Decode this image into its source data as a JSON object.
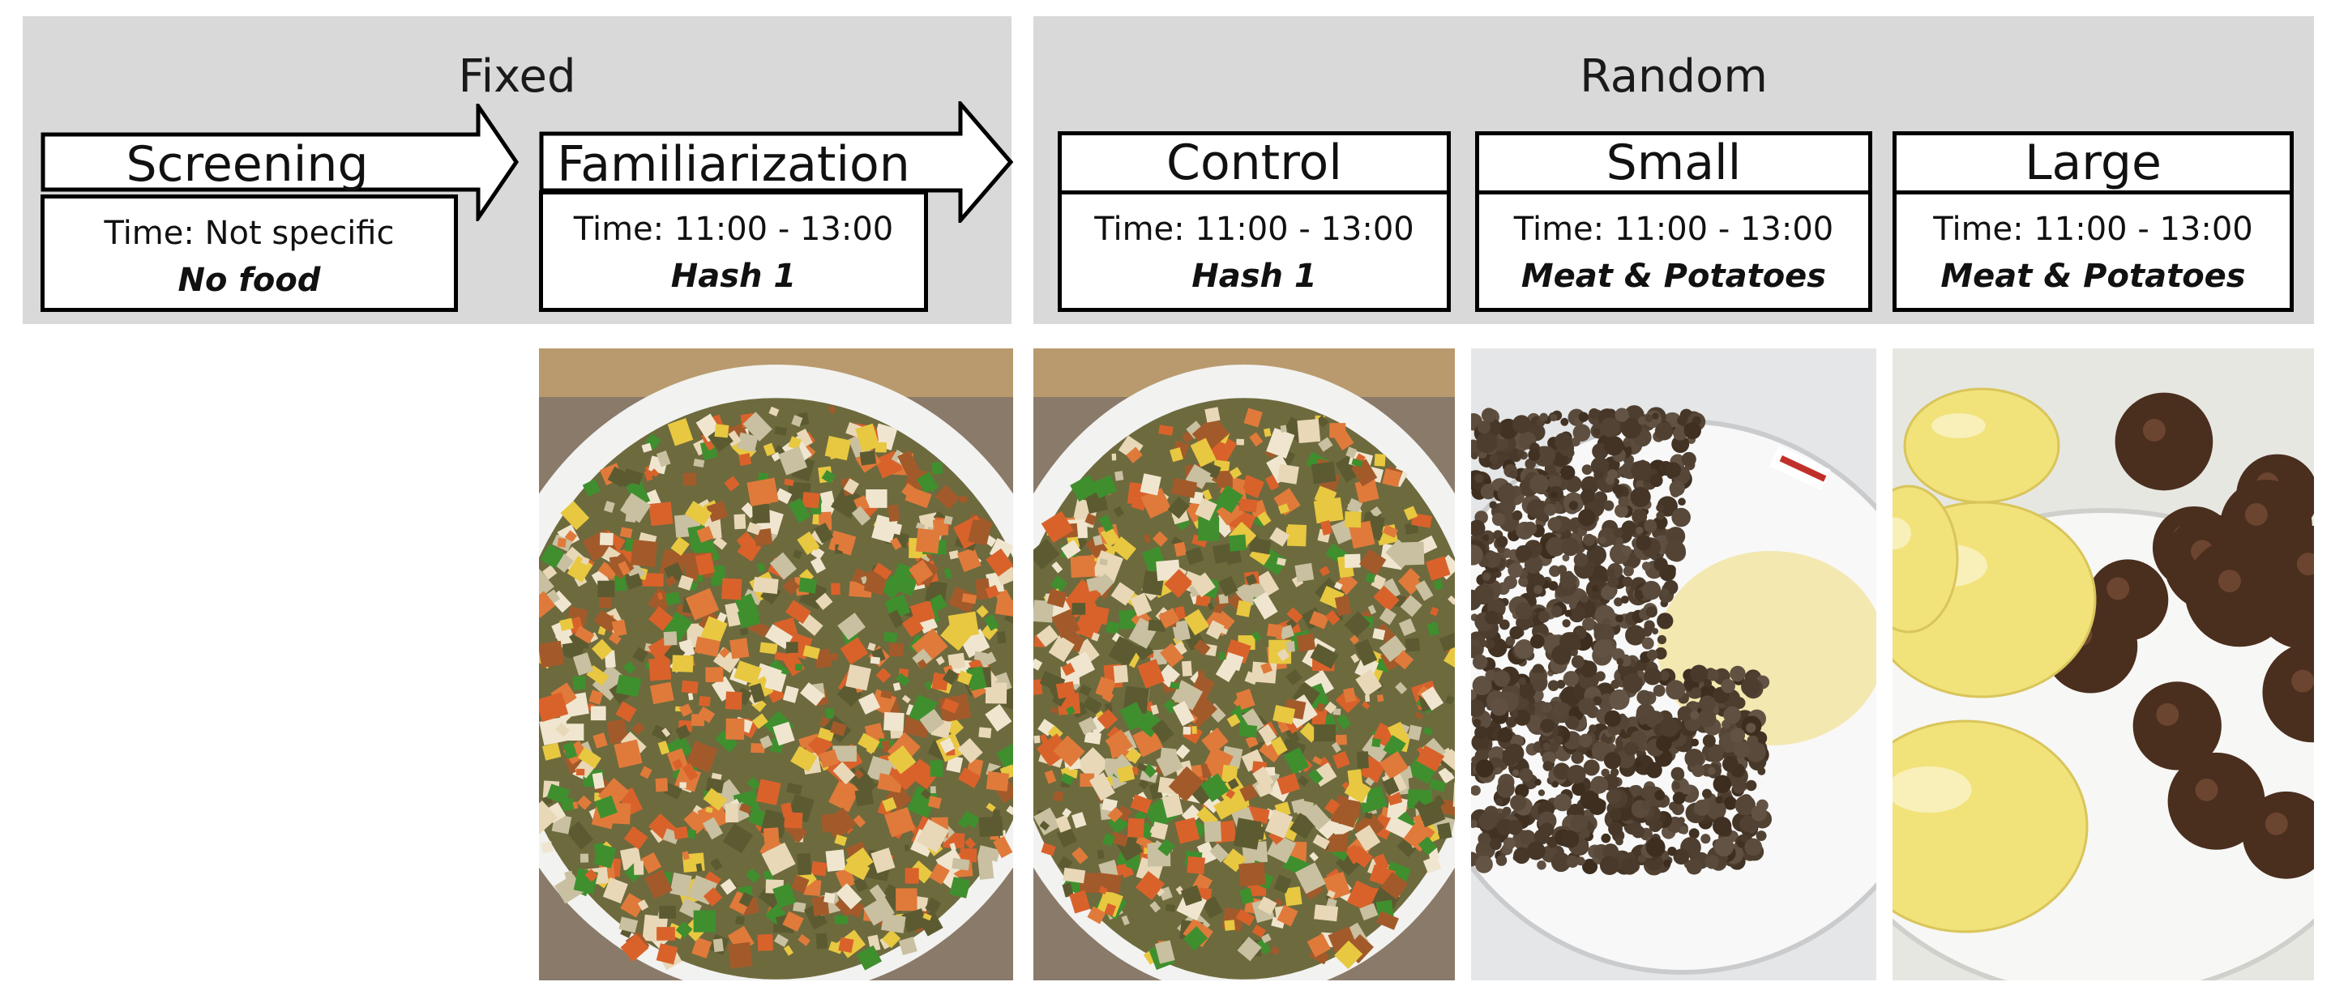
{
  "groups": {
    "fixed_title": "Fixed",
    "random_title": "Random"
  },
  "phases": {
    "screening": {
      "label": "Screening",
      "time": "Time: Not specific",
      "food": "No food"
    },
    "familiarization": {
      "label": "Familiarization",
      "time": "Time: 11:00 - 13:00",
      "food": "Hash 1"
    },
    "control": {
      "label": "Control",
      "time": "Time: 11:00 - 13:00",
      "food": "Hash 1"
    },
    "small": {
      "label": "Small",
      "time": "Time: 11:00 - 13:00",
      "food": "Meat & Potatoes"
    },
    "large": {
      "label": "Large",
      "time": "Time: 11:00 - 13:00",
      "food": "Meat & Potatoes"
    }
  },
  "colors": {
    "panel_gray": "#d9d9d9",
    "border": "#000000"
  }
}
